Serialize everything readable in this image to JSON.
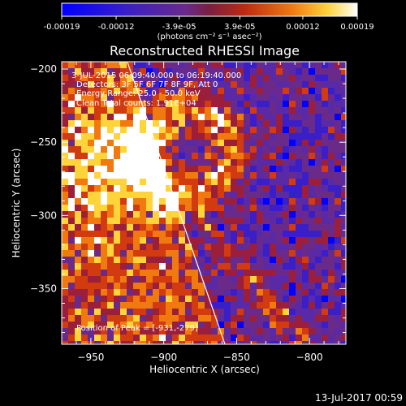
{
  "colorbar": {
    "ticks": [
      "-0.00019",
      "-0.00012",
      "-3.9e-05",
      "3.9e-05",
      "0.00012",
      "0.00019"
    ],
    "units": "(photons cm⁻² s⁻¹ asec⁻²)",
    "range": [
      -0.00019,
      0.00019
    ]
  },
  "colors": {
    "background": "#000000",
    "scale": [
      "#0000ff",
      "#3a1fc8",
      "#5a2aa6",
      "#6a2a8a",
      "#9b1f3a",
      "#d23a10",
      "#f07a10",
      "#ffd33a",
      "#ffffff"
    ]
  },
  "chart_data": {
    "type": "heatmap",
    "title": "Reconstructed RHESSI Image",
    "xlabel": "Heliocentric X (arcsec)",
    "ylabel": "Heliocentric Y (arcsec)",
    "xlim": [
      -970,
      -775
    ],
    "ylim": [
      -388,
      -195
    ],
    "xticks": [
      -950,
      -900,
      -850,
      -800
    ],
    "yticks": [
      -200,
      -250,
      -300,
      -350
    ],
    "xtick_labels": [
      "−950",
      "−900",
      "−850",
      "−800"
    ],
    "ytick_labels": [
      "−200",
      "−250",
      "−300",
      "−350"
    ],
    "annotations": [
      "3-JUL-2015 06:09:40.000 to 06:19:40.000",
      "Detectors: 3F 5F 6F 7F 8F 9F, Att 0",
      "Energy Range: 25.0 - 50.0 keV",
      "Clean   Total counts: 1.91E+04"
    ],
    "peak_label": "Position of Peak = [-931,-279]",
    "peak": [
      -931,
      -279
    ],
    "limb_line": [
      [
        -925,
        -195
      ],
      [
        -858,
        -388
      ]
    ]
  },
  "timestamp": "13-Jul-2017 00:59"
}
